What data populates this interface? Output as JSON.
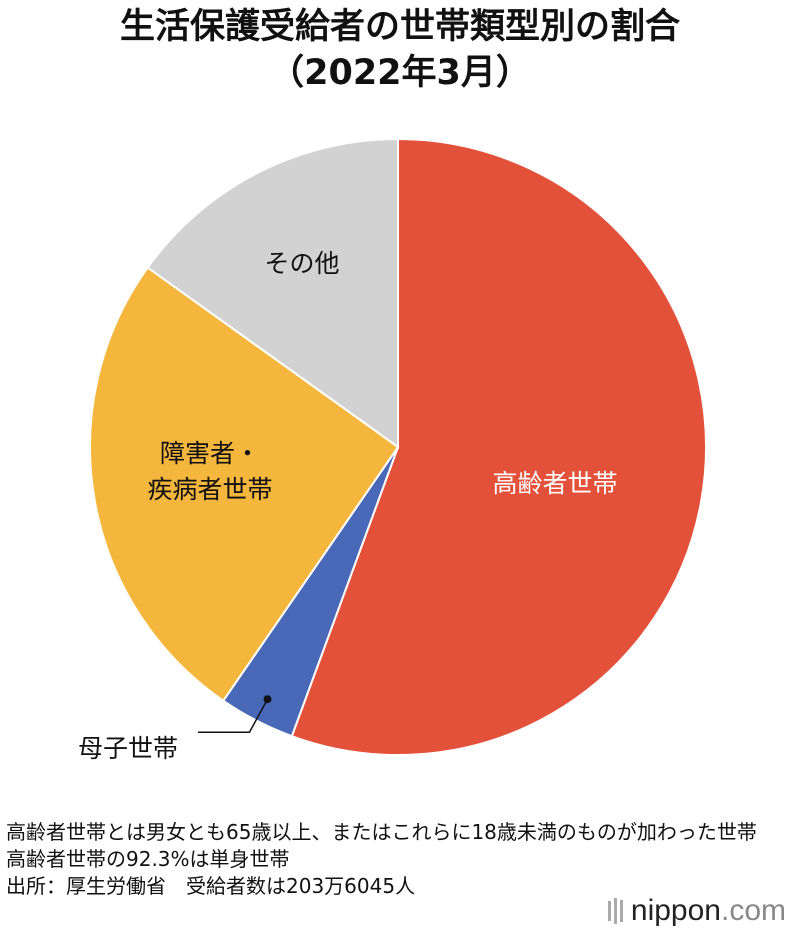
{
  "chart_data": {
    "type": "pie",
    "title_line1": "生活保護受給者の世帯類型別の割合",
    "title_line2": "（2022年3月）",
    "slices": [
      {
        "label_lines": [
          "高齢者世帯"
        ],
        "value": 55.6,
        "color": "#e4513a",
        "label_color": "#ffffff"
      },
      {
        "label_lines": [
          "母子世帯"
        ],
        "value": 4.0,
        "color": "#4a68b8",
        "label_color": "#111111"
      },
      {
        "label_lines": [
          "障害者・",
          "疾病者世帯"
        ],
        "value": 25.3,
        "color": "#f4b63c",
        "label_color": "#111111"
      },
      {
        "label_lines": [
          "その他"
        ],
        "value": 15.1,
        "color": "#d2d2d2",
        "label_color": "#111111"
      }
    ],
    "start": "12 o'clock",
    "direction": "clockwise"
  },
  "notes": [
    "高齢者世帯とは男女とも65歳以上、またはこれらに18歳未満のものが加わった世帯",
    "高齢者世帯の92.3%は単身世帯",
    "出所：厚生労働省　受給者数は203万6045人"
  ],
  "brand": {
    "name": "nippon",
    "domain": ".com"
  }
}
